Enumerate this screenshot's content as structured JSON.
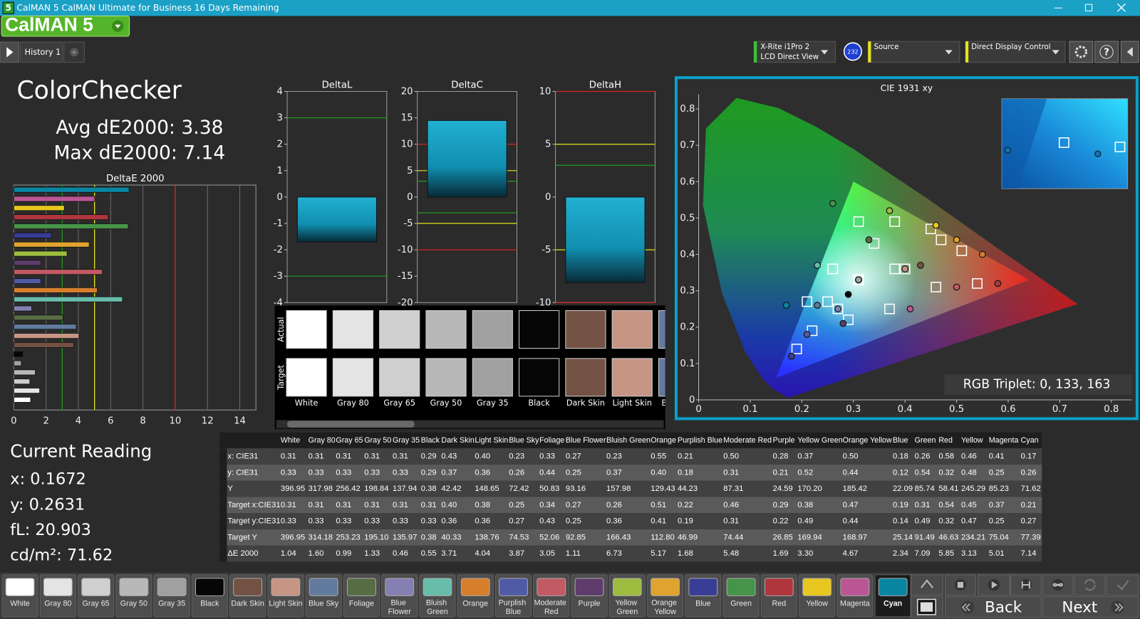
{
  "window": {
    "icon": "5",
    "title": "CalMAN 5 CalMAN Ultimate for Business 16 Days Remaining"
  },
  "logo": "CalMAN 5",
  "tab": "History 1",
  "meter": {
    "name": "X-Rite i1Pro 2",
    "mode": "LCD Direct View",
    "badge": "232"
  },
  "source": "Source",
  "display_control": "Direct Display Control",
  "help": "?",
  "summary": {
    "title": "ColorChecker",
    "avg": "Avg dE2000: 3.38",
    "max": "Max dE2000: 7.14"
  },
  "deltae_chart": {
    "type": "bar",
    "title": "DeltaE 2000",
    "xlim": [
      0,
      15
    ],
    "xticks": [
      0,
      2,
      4,
      6,
      8,
      10,
      12,
      14
    ],
    "grid": true,
    "thresholds": [
      {
        "value": 3,
        "color": "#1f9a1f"
      },
      {
        "value": 5,
        "color": "#e2e21e"
      },
      {
        "value": 10,
        "color": "#d42424"
      }
    ]
  },
  "delta_charts": [
    {
      "type": "bar",
      "title": "DeltaL",
      "ylim": [
        -4,
        4
      ],
      "yticks": [
        -4,
        -3,
        -2,
        -1,
        0,
        1,
        2,
        3,
        4
      ],
      "value": -1.7,
      "lines": [
        {
          "value": 3,
          "color": "#1f9a1f"
        },
        {
          "value": -3,
          "color": "#1f9a1f"
        }
      ]
    },
    {
      "type": "bar",
      "title": "DeltaC",
      "ylim": [
        -20,
        20
      ],
      "yticks": [
        -20,
        -15,
        -10,
        -5,
        0,
        5,
        10,
        15,
        20
      ],
      "value": 14.5,
      "lines": [
        {
          "value": 10,
          "color": "#d42424"
        },
        {
          "value": -10,
          "color": "#d42424"
        },
        {
          "value": 5,
          "color": "#e2e21e"
        },
        {
          "value": -5,
          "color": "#e2e21e"
        },
        {
          "value": 3,
          "color": "#1f9a1f"
        },
        {
          "value": -3,
          "color": "#1f9a1f"
        }
      ]
    },
    {
      "type": "bar",
      "title": "DeltaH",
      "ylim": [
        -10,
        10
      ],
      "yticks": [
        -10,
        -5,
        0,
        5,
        10
      ],
      "value": -8.1,
      "lines": [
        {
          "value": 10,
          "color": "#d42424"
        },
        {
          "value": -10,
          "color": "#d42424"
        },
        {
          "value": 5,
          "color": "#e2e21e"
        },
        {
          "value": -5,
          "color": "#e2e21e"
        },
        {
          "value": 3,
          "color": "#1f9a1f"
        }
      ]
    }
  ],
  "swatch_strip": {
    "actual": "Actual",
    "target": "Target"
  },
  "patches": [
    {
      "name": "White",
      "color": "#ffffff"
    },
    {
      "name": "Gray 80",
      "color": "#e4e4e4"
    },
    {
      "name": "Gray 65",
      "color": "#cfcfcf"
    },
    {
      "name": "Gray 50",
      "color": "#b8b8b8"
    },
    {
      "name": "Gray 35",
      "color": "#a0a0a0"
    },
    {
      "name": "Black",
      "color": "#060606"
    },
    {
      "name": "Dark Skin",
      "color": "#735244"
    },
    {
      "name": "Light Skin",
      "color": "#c69584"
    },
    {
      "name": "Blue Sky",
      "color": "#627a9d"
    },
    {
      "name": "Foliage",
      "color": "#576c43"
    },
    {
      "name": "Blue Flower",
      "color": "#8580b1"
    },
    {
      "name": "Bluish Green",
      "color": "#67bdaa"
    },
    {
      "name": "Orange",
      "color": "#d67e2c"
    },
    {
      "name": "Purplish Blue",
      "color": "#505ba6"
    },
    {
      "name": "Moderate Red",
      "color": "#c15a63"
    },
    {
      "name": "Purple",
      "color": "#5e3c6c"
    },
    {
      "name": "Yellow Green",
      "color": "#9dbc40"
    },
    {
      "name": "Orange Yellow",
      "color": "#e0a32e"
    },
    {
      "name": "Blue",
      "color": "#383d96"
    },
    {
      "name": "Green",
      "color": "#469449"
    },
    {
      "name": "Red",
      "color": "#af363c"
    },
    {
      "name": "Yellow",
      "color": "#e7c71f"
    },
    {
      "name": "Magenta",
      "color": "#bb5695"
    },
    {
      "name": "Cyan",
      "color": "#0885a1"
    }
  ],
  "selected_patch": 23,
  "table": {
    "rows": [
      {
        "label": "x: CIE31",
        "values": [
          "0.31",
          "0.31",
          "0.31",
          "0.31",
          "0.31",
          "0.29",
          "0.43",
          "0.40",
          "0.23",
          "0.33",
          "0.27",
          "0.23",
          "0.55",
          "0.21",
          "0.50",
          "0.28",
          "0.37",
          "0.50",
          "0.18",
          "0.26",
          "0.58",
          "0.46",
          "0.41",
          "0.17"
        ]
      },
      {
        "label": "y: CIE31",
        "values": [
          "0.33",
          "0.33",
          "0.33",
          "0.33",
          "0.33",
          "0.29",
          "0.37",
          "0.36",
          "0.26",
          "0.44",
          "0.25",
          "0.37",
          "0.40",
          "0.18",
          "0.31",
          "0.21",
          "0.52",
          "0.44",
          "0.12",
          "0.54",
          "0.32",
          "0.48",
          "0.25",
          "0.26"
        ]
      },
      {
        "label": "Y",
        "values": [
          "396.95",
          "317.98",
          "256.42",
          "198.84",
          "137.94",
          "0.38",
          "42.42",
          "148.65",
          "72.42",
          "50.83",
          "93.16",
          "157.98",
          "129.43",
          "44.23",
          "87.31",
          "24.59",
          "170.20",
          "185.42",
          "22.09",
          "85.74",
          "58.41",
          "245.29",
          "85.23",
          "71.62"
        ]
      },
      {
        "label": "Target x:CIE31",
        "values": [
          "0.31",
          "0.31",
          "0.31",
          "0.31",
          "0.31",
          "0.31",
          "0.40",
          "0.38",
          "0.25",
          "0.34",
          "0.27",
          "0.26",
          "0.51",
          "0.22",
          "0.46",
          "0.29",
          "0.38",
          "0.47",
          "0.19",
          "0.31",
          "0.54",
          "0.45",
          "0.37",
          "0.21"
        ]
      },
      {
        "label": "Target y:CIE31",
        "values": [
          "0.33",
          "0.33",
          "0.33",
          "0.33",
          "0.33",
          "0.33",
          "0.36",
          "0.36",
          "0.27",
          "0.43",
          "0.25",
          "0.36",
          "0.41",
          "0.19",
          "0.31",
          "0.22",
          "0.49",
          "0.44",
          "0.14",
          "0.49",
          "0.32",
          "0.47",
          "0.25",
          "0.27"
        ]
      },
      {
        "label": "Target Y",
        "values": [
          "396.95",
          "314.18",
          "253.23",
          "195.10",
          "135.97",
          "0.38",
          "40.33",
          "138.76",
          "74.53",
          "52.06",
          "92.85",
          "166.43",
          "112.80",
          "46.99",
          "74.44",
          "26.85",
          "169.94",
          "168.97",
          "25.14",
          "91.49",
          "46.63",
          "234.21",
          "75.04",
          "77.39"
        ]
      },
      {
        "label": "ΔE 2000",
        "values": [
          "1.04",
          "1.60",
          "0.99",
          "1.33",
          "0.46",
          "0.55",
          "3.71",
          "4.04",
          "3.87",
          "3.05",
          "1.11",
          "6.73",
          "5.17",
          "1.68",
          "5.48",
          "1.69",
          "3.30",
          "4.67",
          "2.34",
          "7.09",
          "5.85",
          "3.13",
          "5.01",
          "7.14"
        ]
      }
    ]
  },
  "cie_chart": {
    "type": "scatter",
    "title": "CIE 1931 xy",
    "xlim": [
      0,
      0.84
    ],
    "ylim": [
      0,
      0.84
    ],
    "xticks": [
      0,
      0.1,
      0.2,
      0.3,
      0.4,
      0.5,
      0.6,
      0.7,
      0.8
    ],
    "yticks": [
      0,
      0.1,
      0.2,
      0.3,
      0.4,
      0.5,
      0.6,
      0.7,
      0.8
    ],
    "gamut": [
      [
        0.64,
        0.33
      ],
      [
        0.3,
        0.6
      ],
      [
        0.15,
        0.06
      ]
    ],
    "readout": "RGB Triplet: 0, 133, 163"
  },
  "current_reading": {
    "title": "Current Reading",
    "lines": [
      "x: 0.1672",
      "y: 0.2631",
      "fL: 20.903",
      "cd/m²: 71.62"
    ]
  },
  "nav": {
    "back": "Back",
    "next": "Next"
  }
}
